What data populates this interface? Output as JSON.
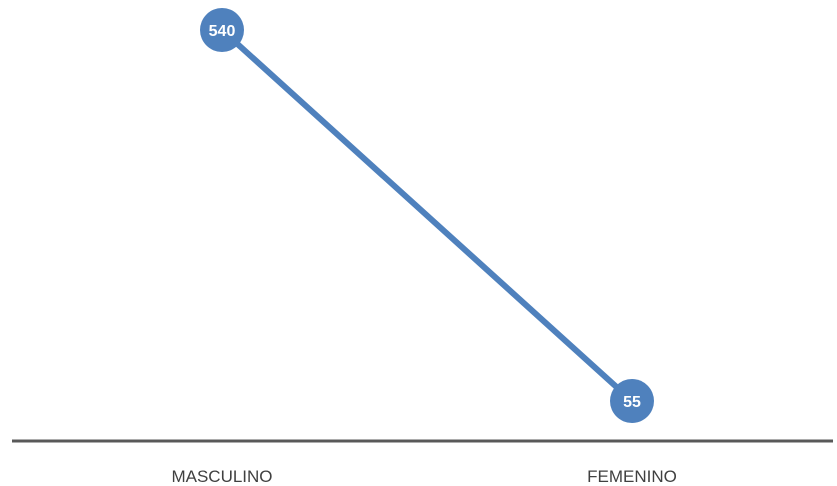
{
  "chart_data": {
    "type": "line",
    "categories": [
      "MASCULINO",
      "FEMENINO"
    ],
    "series": [
      {
        "values": [
          540,
          55
        ]
      }
    ],
    "data_labels": [
      "540",
      "55"
    ],
    "title": "",
    "xlabel": "",
    "ylabel": "",
    "ylim": [
      55,
      540
    ],
    "grid": false,
    "legend": "none",
    "colors": {
      "series": "#4f81bd",
      "axis": "#595959",
      "label_text": "#404040",
      "data_label_text": "#ffffff"
    }
  }
}
